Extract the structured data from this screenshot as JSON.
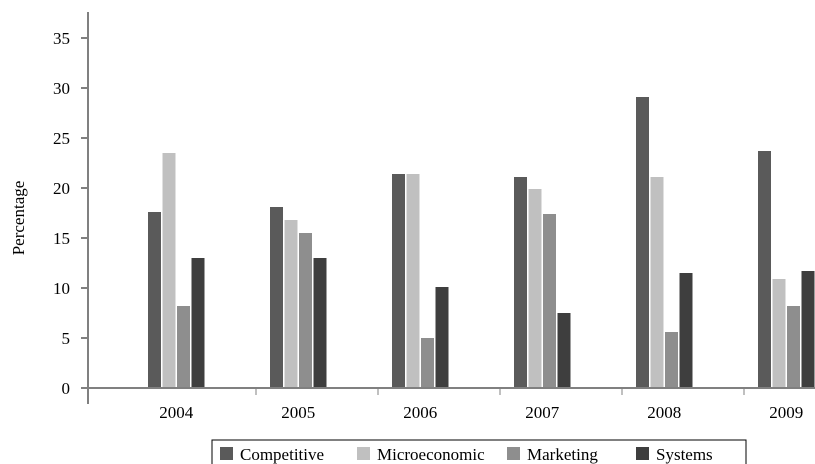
{
  "chart_data": {
    "type": "bar",
    "title": "",
    "xlabel": "",
    "ylabel": "Percentage",
    "ylim": [
      0,
      35
    ],
    "yticks": [
      "0",
      "5",
      "10",
      "15",
      "20",
      "25",
      "30",
      "35"
    ],
    "grid": false,
    "legend_position": "bottom",
    "categories": [
      "2004",
      "2005",
      "2006",
      "2007",
      "2008",
      "2009"
    ],
    "series": [
      {
        "name": "Competitive",
        "color": "#5a5a5a",
        "values": [
          17.6,
          18.1,
          21.4,
          21.1,
          29.1,
          23.7
        ]
      },
      {
        "name": "Microeconomic",
        "color": "#c0c0c0",
        "values": [
          23.5,
          16.8,
          21.4,
          19.9,
          21.1,
          10.9
        ]
      },
      {
        "name": "Marketing",
        "color": "#8e8e8e",
        "values": [
          8.2,
          15.5,
          5.0,
          17.4,
          5.6,
          8.2
        ]
      },
      {
        "name": "Systems",
        "color": "#3e3e3e",
        "values": [
          13.0,
          13.0,
          10.1,
          7.5,
          11.5,
          11.7
        ]
      }
    ]
  }
}
